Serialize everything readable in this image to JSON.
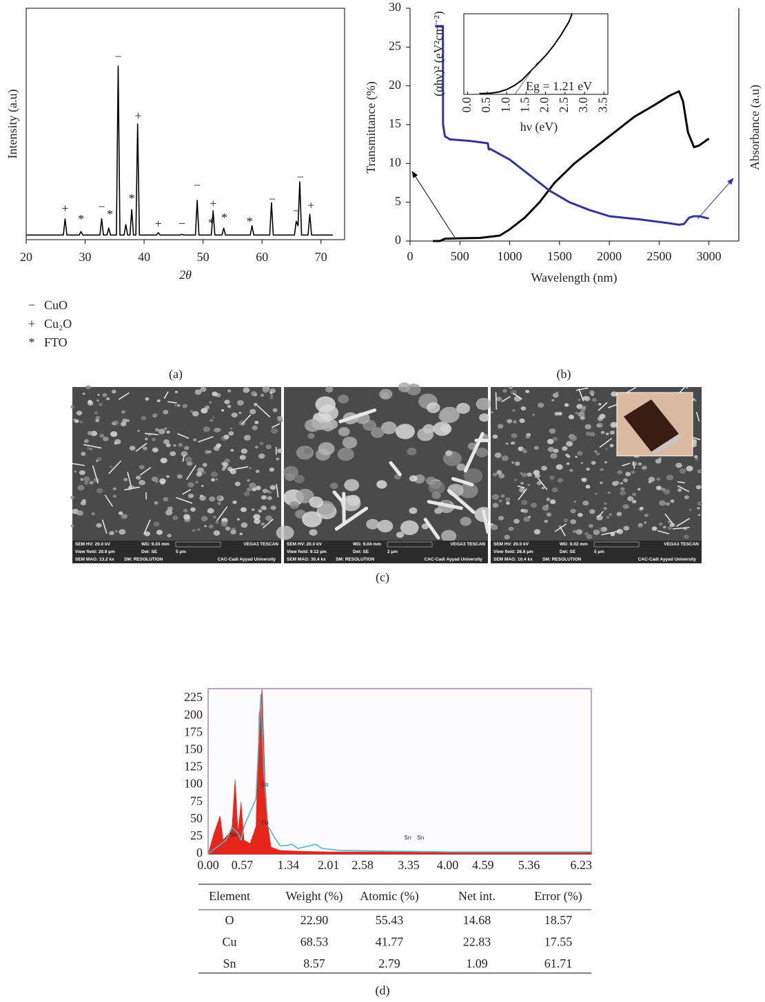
{
  "chart_data": [
    {
      "type": "line",
      "panel_label": "(a)",
      "xlabel": "2θ",
      "ylabel": "Intensity (a.u)",
      "xlim": [
        20,
        74
      ],
      "xticks": [
        20,
        30,
        40,
        50,
        60,
        70
      ],
      "ylim": [
        0,
        100
      ],
      "series": [
        {
          "color": "#000000",
          "x": [
            20,
            26.3,
            26.6,
            26.9,
            29.0,
            29.3,
            29.6,
            32.5,
            32.8,
            33.1,
            33.7,
            34.0,
            34.3,
            35.3,
            35.6,
            35.9,
            36.6,
            36.9,
            37.2,
            37.6,
            37.9,
            38.2,
            38.6,
            38.9,
            39.2,
            42.1,
            42.4,
            42.7,
            46.1,
            46.4,
            46.7,
            48.7,
            49.0,
            49.3,
            51.4,
            51.7,
            52.0,
            53.2,
            53.5,
            53.8,
            58.0,
            58.3,
            58.6,
            61.3,
            61.6,
            61.9,
            65.5,
            65.8,
            66.1,
            66.4,
            66.7,
            67.8,
            68.1,
            68.4,
            72
          ],
          "values": [
            2,
            2,
            9,
            2,
            2,
            3.5,
            2,
            2,
            9,
            2,
            2,
            5,
            2,
            2,
            75,
            2,
            2,
            6.5,
            2,
            2,
            13,
            2,
            2,
            50,
            2,
            2,
            3,
            2,
            2,
            2.3,
            2,
            2,
            17,
            2,
            2,
            12.5,
            2,
            2,
            5,
            2,
            2,
            6,
            2,
            2,
            16,
            2,
            2,
            8,
            6,
            25,
            2,
            2,
            11,
            2,
            2
          ]
        }
      ],
      "annotations": [
        {
          "text": "+",
          "x": 26.6,
          "y": 13
        },
        {
          "text": "*",
          "x": 29.3,
          "y": 8.3
        },
        {
          "text": "−",
          "x": 32.8,
          "y": 13.7
        },
        {
          "text": "*",
          "x": 34.2,
          "y": 10.4
        },
        {
          "text": "−",
          "x": 35.6,
          "y": 78.6
        },
        {
          "text": "*",
          "x": 37.9,
          "y": 17.3
        },
        {
          "text": "+",
          "x": 39.0,
          "y": 53
        },
        {
          "text": "+",
          "x": 42.4,
          "y": 6.5
        },
        {
          "text": "−",
          "x": 46.4,
          "y": 6.5
        },
        {
          "text": "−",
          "x": 49.0,
          "y": 23
        },
        {
          "text": "+",
          "x": 51.7,
          "y": 15
        },
        {
          "text": "*",
          "x": 51.4,
          "y": 6.8
        },
        {
          "text": "*",
          "x": 53.6,
          "y": 9
        },
        {
          "text": "*",
          "x": 57.9,
          "y": 7.4
        },
        {
          "text": "−",
          "x": 61.7,
          "y": 17
        },
        {
          "text": "−",
          "x": 65.8,
          "y": 12
        },
        {
          "text": "−",
          "x": 66.5,
          "y": 26.5
        },
        {
          "text": "+",
          "x": 68.3,
          "y": 14.3
        }
      ],
      "legend": [
        {
          "symbol": "−",
          "label": "CuO"
        },
        {
          "symbol": "+",
          "label": "Cu₂O"
        },
        {
          "symbol": "*",
          "label": "FTO"
        }
      ]
    },
    {
      "type": "line",
      "panel_label": "(b)",
      "xlabel": "Wavelength (nm)",
      "ylabel": "Transmittance (%)",
      "y2label": "Absorbance (a.u)",
      "xlim": [
        0,
        3300
      ],
      "xticks": [
        0,
        500,
        1000,
        1500,
        2000,
        2500,
        3000
      ],
      "ylim": [
        0,
        30
      ],
      "yticks": [
        0,
        5,
        10,
        15,
        20,
        25,
        30
      ],
      "y2lim": [
        0,
        30
      ],
      "series": [
        {
          "color": "#000000",
          "x": [
            230,
            300,
            350,
            500,
            700,
            900,
            1000,
            1150,
            1300,
            1450,
            1650,
            1850,
            2050,
            2250,
            2450,
            2600,
            2700,
            2740,
            2790,
            2850,
            2900,
            3000
          ],
          "values": [
            0,
            0,
            0.3,
            0.35,
            0.4,
            0.7,
            1.5,
            3,
            5,
            7.5,
            10,
            12,
            14,
            16,
            17.5,
            18.7,
            19.3,
            18,
            14,
            12.1,
            12.3,
            13.2
          ]
        },
        {
          "color": "#33349a",
          "axis": "y2",
          "x": [
            250,
            330,
            331,
            350,
            400,
            600,
            780,
            790,
            800,
            1000,
            1200,
            1400,
            1600,
            1800,
            2000,
            2300,
            2600,
            2700,
            2750,
            2800,
            2850,
            2900,
            3000
          ],
          "values": [
            27.7,
            27.7,
            15,
            13.5,
            13.1,
            12.9,
            12.6,
            11.8,
            11.9,
            10.5,
            8.5,
            6.5,
            5,
            4,
            3.2,
            2.8,
            2.3,
            2.1,
            2.2,
            3,
            3.2,
            3.2,
            2.9
          ]
        }
      ],
      "inset": {
        "xlabel": "hν (eV)",
        "ylabel": "(αhν)² (eV²cm⁻²)",
        "annotation": "Eg = 1.21 eV",
        "xlim": [
          -0.1,
          3.6
        ],
        "xticks": [
          {
            "value": 0,
            "label": "0.0"
          },
          0.5,
          {
            "value": 1,
            "label": "1.0"
          },
          1.5,
          {
            "value": 2,
            "label": "2.0"
          },
          2.5,
          {
            "value": 3,
            "label": "3.0"
          },
          3.5
        ],
        "ylim": [
          0,
          100
        ],
        "series": [
          {
            "color": "#000000",
            "x": [
              0.3,
              0.6,
              0.8,
              1.0,
              1.2,
              1.4,
              1.6,
              1.8,
              2.0,
              2.2,
              2.4,
              2.6,
              2.68
            ],
            "values": [
              1,
              1.5,
              3,
              6,
              11,
              18,
              28,
              38,
              48,
              60,
              74,
              90,
              100
            ]
          },
          {
            "color": "#555555",
            "x": [
              1.21,
              1.8
            ],
            "values": [
              0,
              40
            ]
          }
        ]
      }
    },
    {
      "type": "line",
      "panel_label": "(d)",
      "xlim": [
        0,
        6.4
      ],
      "xticks": [
        {
          "value": 0,
          "label": "0.00"
        },
        0.57,
        1.34,
        2.01,
        2.58,
        3.35,
        {
          "value": 4,
          "label": "4.00"
        },
        4.59,
        5.36,
        6.23
      ],
      "ylim": [
        0,
        239
      ],
      "yticks": [
        0,
        25,
        50,
        75,
        100,
        125,
        150,
        175,
        200,
        225
      ],
      "series": [
        {
          "color": "#e8251a",
          "fill": true,
          "x": [
            0,
            0.1,
            0.2,
            0.25,
            0.35,
            0.4,
            0.45,
            0.5,
            0.55,
            0.6,
            0.7,
            0.8,
            0.85,
            0.9,
            0.95,
            1.0,
            1.05,
            1.2,
            1.5,
            2,
            3,
            4,
            5,
            6,
            6.4
          ],
          "values": [
            0,
            30,
            55,
            20,
            30,
            40,
            108,
            30,
            75,
            20,
            15,
            40,
            200,
            239,
            110,
            40,
            10,
            5,
            4,
            3,
            3,
            2,
            2,
            2,
            2
          ]
        },
        {
          "color": "#4bb8c8",
          "x": [
            0,
            0.3,
            0.4,
            0.5,
            0.55,
            0.6,
            0.7,
            0.8,
            0.88,
            0.93,
            1.0,
            1.1,
            1.2,
            1.3,
            1.4,
            1.5,
            1.8,
            1.9,
            2.2,
            3,
            4,
            5,
            6.4
          ],
          "values": [
            0,
            20,
            38,
            30,
            20,
            40,
            60,
            80,
            230,
            120,
            40,
            25,
            12,
            12,
            14,
            8,
            14,
            8,
            5,
            4,
            3,
            3,
            3
          ]
        }
      ],
      "annotations": [
        {
          "text": "Cu",
          "x": 0.95,
          "y": 100
        },
        {
          "text": "Cu",
          "x": 0.95,
          "y": 45
        },
        {
          "text": "Sn",
          "x": 0.42,
          "y": 27
        },
        {
          "text": "Sn",
          "x": 3.33,
          "y": 23
        },
        {
          "text": "Sn",
          "x": 3.55,
          "y": 23
        }
      ],
      "table": {
        "columns": [
          "Element",
          "Weight (%)",
          "Atomic (%)",
          "Net int.",
          "Error (%)"
        ],
        "rows": [
          [
            "O",
            "22.90",
            "55.43",
            "14.68",
            "18.57"
          ],
          [
            "Cu",
            "68.53",
            "41.77",
            "22.83",
            "17.55"
          ],
          [
            "Sn",
            "8.57",
            "2.79",
            "1.09",
            "61.71"
          ]
        ]
      }
    }
  ],
  "sem_panel": {
    "panel_label": "(c)",
    "images": [
      {
        "hv": "SEM HV: 20.0 kV",
        "wd": "WD: 9.03 mm",
        "brand": "VEGA3 TESCAN",
        "view_field": "View field: 20.9 µm",
        "det": "Det: SE",
        "scale": "5 µm",
        "mag": "SEM MAG: 13.2 kx",
        "mode": "SM: RESOLUTION",
        "org": "CAC-Cadi Ayyad University"
      },
      {
        "hv": "SEM HV: 20.0 kV",
        "wd": "WD: 9.04 mm",
        "brand": "VEGA3 TESCAN",
        "view_field": "View field: 9.12 µm",
        "det": "Det: SE",
        "scale": "2 µm",
        "mag": "SEM MAG: 30.4 kx",
        "mode": "SM: RESOLUTION",
        "org": "CAC-Cadi Ayyad University"
      },
      {
        "hv": "SEM HV: 20.0 kV",
        "wd": "WD: 9.02 mm",
        "brand": "VEGA3 TESCAN",
        "view_field": "View field: 26.6 µm",
        "det": "Det: SE",
        "scale": "5 µm",
        "mag": "SEM MAG: 10.4 kx",
        "mode": "SM: RESOLUTION",
        "org": "CAC-Cadi Ayyad University"
      }
    ]
  }
}
